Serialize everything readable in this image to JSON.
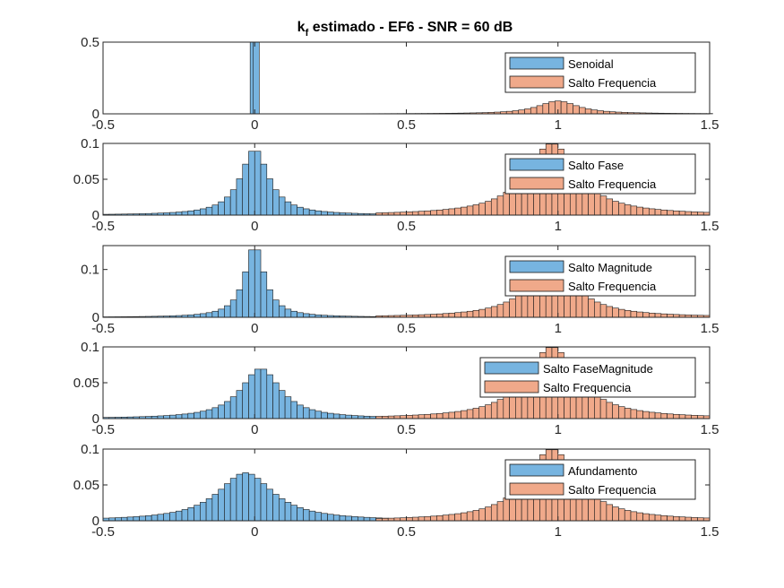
{
  "figure": {
    "title_main": "k",
    "title_sub": "f",
    "title_rest": " estimado - EF6 - SNR = 60 dB"
  },
  "colors": {
    "series_a": "#77b4e0",
    "series_b": "#f0a98a",
    "edge": "#1a1a1a",
    "axis": "#262626"
  },
  "chart_data": [
    {
      "type": "bar",
      "xlim": [
        -0.5,
        1.5
      ],
      "ylim": [
        0,
        0.5
      ],
      "xticks": [
        "-0.5",
        "0",
        "0.5",
        "1",
        "1.5"
      ],
      "yticks": [
        "0",
        "0.5"
      ],
      "legend_position": "top-right",
      "series": [
        {
          "name": "Senoidal",
          "color": "#77b4e0",
          "x": [
            -0.005,
            0.005
          ],
          "values": [
            0.5,
            0.5
          ]
        },
        {
          "name": "Salto Frequencia",
          "color": "#f0a98a",
          "center": 1.0,
          "width": 0.1,
          "peak": 0.09,
          "range": [
            0.17,
            1.5
          ]
        }
      ]
    },
    {
      "type": "bar",
      "xlim": [
        -0.5,
        1.5
      ],
      "ylim": [
        0,
        0.1
      ],
      "xticks": [
        "-0.5",
        "0",
        "0.5",
        "1",
        "1.5"
      ],
      "yticks": [
        "0",
        "0.05",
        "0.1"
      ],
      "legend_position": "top-right",
      "series": [
        {
          "name": "Salto Fase",
          "color": "#77b4e0",
          "center": 0.0,
          "width": 0.07,
          "peak": 0.092,
          "range": [
            -0.5,
            0.7
          ]
        },
        {
          "name": "Salto Frequencia",
          "color": "#f0a98a",
          "center": 0.98,
          "width": 0.13,
          "peak": 0.1,
          "range": [
            0.4,
            1.5
          ]
        }
      ]
    },
    {
      "type": "bar",
      "xlim": [
        -0.5,
        1.5
      ],
      "ylim": [
        0,
        0.15
      ],
      "xticks": [
        "-0.5",
        "0",
        "0.5",
        "1",
        "1.5"
      ],
      "yticks": [
        "0",
        "0.1"
      ],
      "legend_position": "top-right",
      "series": [
        {
          "name": "Salto Magnitude",
          "color": "#77b4e0",
          "center": 0.0,
          "width": 0.05,
          "peak": 0.15,
          "range": [
            -0.5,
            0.7
          ]
        },
        {
          "name": "Salto Frequencia",
          "color": "#f0a98a",
          "center": 0.98,
          "width": 0.13,
          "peak": 0.1,
          "range": [
            0.4,
            1.5
          ]
        }
      ]
    },
    {
      "type": "bar",
      "xlim": [
        -0.5,
        1.5
      ],
      "ylim": [
        0,
        0.1
      ],
      "xticks": [
        "-0.5",
        "0",
        "0.5",
        "1",
        "1.5"
      ],
      "yticks": [
        "0",
        "0.05",
        "0.1"
      ],
      "legend_position": "top-right",
      "series": [
        {
          "name": "Salto FaseMagnitude",
          "color": "#77b4e0",
          "center": 0.02,
          "width": 0.1,
          "peak": 0.07,
          "range": [
            -0.5,
            0.7
          ]
        },
        {
          "name": "Salto Frequencia",
          "color": "#f0a98a",
          "center": 0.98,
          "width": 0.13,
          "peak": 0.1,
          "range": [
            0.4,
            1.5
          ]
        }
      ]
    },
    {
      "type": "bar",
      "xlim": [
        -0.5,
        1.5
      ],
      "ylim": [
        0,
        0.1
      ],
      "xticks": [
        "-0.5",
        "0",
        "0.5",
        "1",
        "1.5"
      ],
      "yticks": [
        "0",
        "0.05",
        "0.1"
      ],
      "legend_position": "top-right",
      "series": [
        {
          "name": "Afundamento",
          "color": "#77b4e0",
          "center": -0.03,
          "width": 0.14,
          "peak": 0.067,
          "range": [
            -0.5,
            0.7
          ]
        },
        {
          "name": "Salto Frequencia",
          "color": "#f0a98a",
          "center": 0.98,
          "width": 0.13,
          "peak": 0.1,
          "range": [
            0.4,
            1.5
          ]
        }
      ]
    }
  ]
}
